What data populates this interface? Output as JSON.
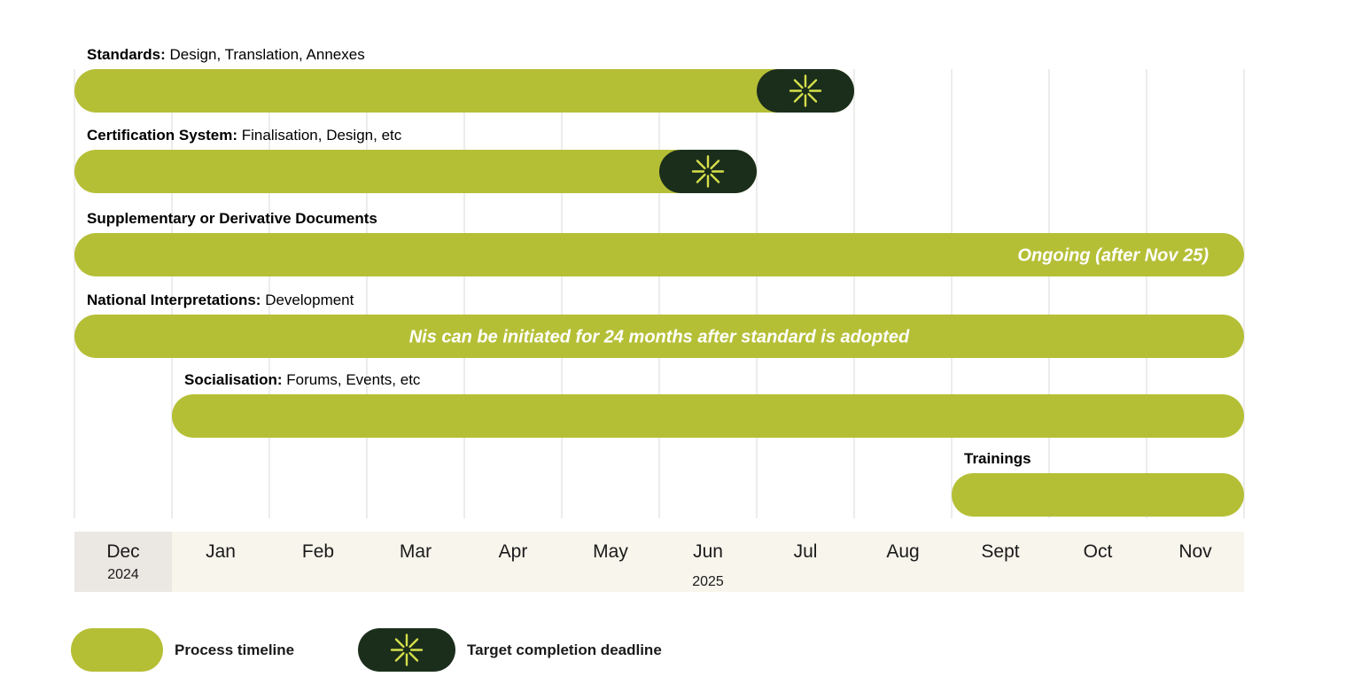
{
  "colors": {
    "process": "#b5bf36",
    "deadline": "#1b2e1c",
    "deadline_icon": "#d6df4a",
    "axis_band": "#f7f5ec",
    "axis_first": "#ebe8e4",
    "gridline": "#e6e6e6",
    "overlay_text": "#ffffff"
  },
  "chart_data": {
    "type": "gantt",
    "months": [
      "Dec",
      "Jan",
      "Feb",
      "Mar",
      "Apr",
      "May",
      "Jun",
      "Jul",
      "Aug",
      "Sept",
      "Oct",
      "Nov"
    ],
    "years": [
      {
        "label": "2024",
        "month_index": 0
      },
      {
        "label": "2025",
        "month_index": 6
      }
    ],
    "tasks": [
      {
        "bold": "Standards:",
        "text": " Design, Translation, Annexes",
        "start": 0,
        "end": 8,
        "deadline": true,
        "overlay": ""
      },
      {
        "bold": "Certification System:",
        "text": " Finalisation, Design, etc",
        "start": 0,
        "end": 7,
        "deadline": true,
        "overlay": ""
      },
      {
        "bold": "Supplementary or Derivative Documents",
        "text": "",
        "start": 0,
        "end": 12,
        "deadline": false,
        "overlay": "Ongoing (after Nov 25)",
        "overlay_align": "end"
      },
      {
        "bold": "National Interpretations:",
        "text": " Development",
        "start": 0,
        "end": 12,
        "deadline": false,
        "overlay": "Nis can be initiated for 24 months after standard is adopted",
        "overlay_align": "middle"
      },
      {
        "bold": "Socialisation:",
        "text": " Forums, Events, etc",
        "start": 1,
        "end": 12,
        "deadline": false,
        "overlay": ""
      },
      {
        "bold": "Trainings",
        "text": "",
        "start": 9,
        "end": 12,
        "deadline": false,
        "overlay": ""
      }
    ],
    "legend": [
      {
        "label": "Process timeline",
        "kind": "process"
      },
      {
        "label": "Target completion deadline",
        "kind": "deadline"
      }
    ]
  }
}
